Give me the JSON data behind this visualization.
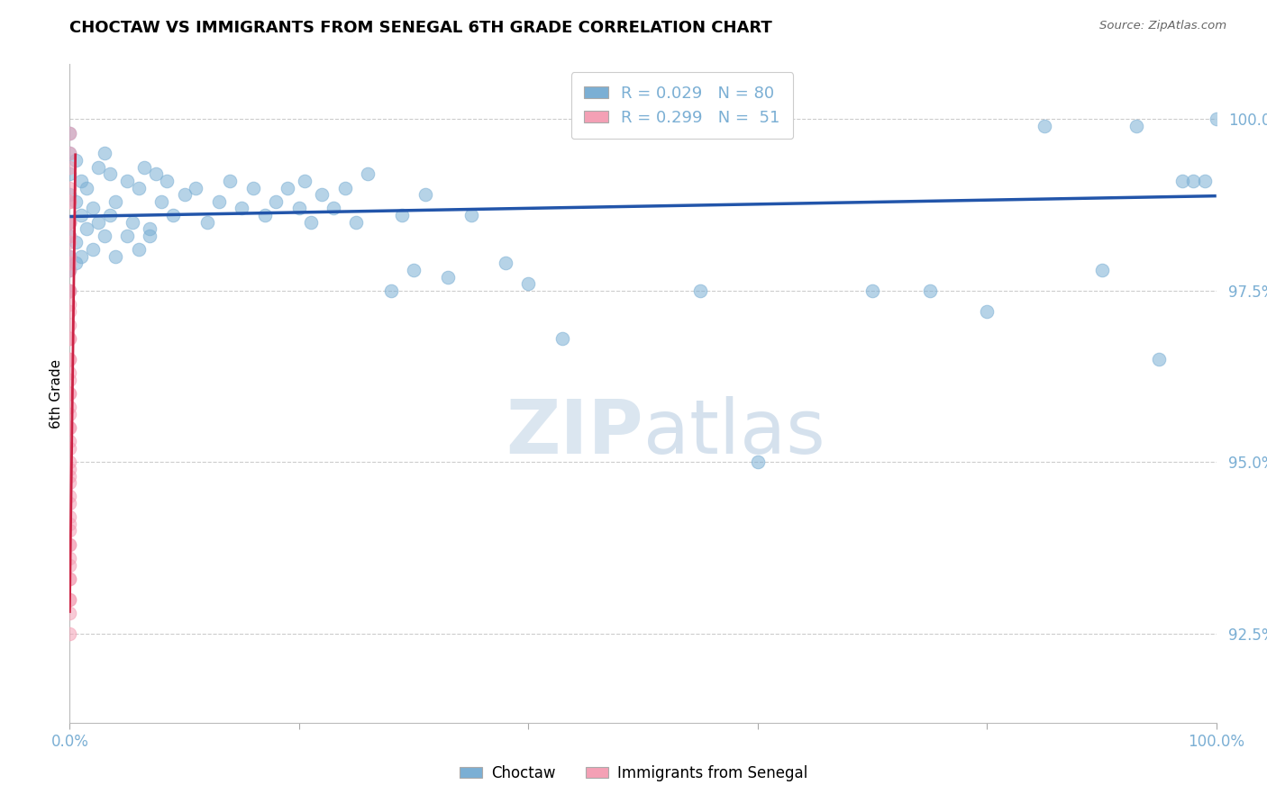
{
  "title": "CHOCTAW VS IMMIGRANTS FROM SENEGAL 6TH GRADE CORRELATION CHART",
  "source": "Source: ZipAtlas.com",
  "ylabel": "6th Grade",
  "blue_color": "#7BAFD4",
  "pink_color": "#F4A0B5",
  "blue_line_color": "#2255AA",
  "pink_line_color": "#CC2244",
  "blue_scatter_x": [
    0.0,
    0.0,
    0.0,
    0.0,
    0.0,
    0.5,
    0.5,
    1.0,
    1.0,
    1.5,
    2.0,
    2.5,
    3.0,
    3.5,
    4.0,
    5.0,
    5.5,
    6.0,
    6.5,
    7.0,
    7.5,
    8.0,
    8.5,
    9.0,
    10.0,
    11.0,
    12.0,
    13.0,
    14.0,
    15.0,
    16.0,
    17.0,
    18.0,
    19.0,
    20.0,
    20.5,
    21.0,
    22.0,
    23.0,
    24.0,
    25.0,
    26.0,
    28.0,
    29.0,
    30.0,
    31.0,
    33.0,
    35.0,
    38.0,
    40.0,
    43.0,
    55.0,
    60.0,
    70.0,
    75.0,
    80.0,
    85.0,
    90.0,
    93.0,
    95.0,
    97.0,
    98.0,
    99.0,
    100.0,
    0.0,
    0.0,
    0.0,
    0.0,
    0.5,
    0.5,
    1.0,
    1.5,
    2.0,
    2.5,
    3.0,
    3.5,
    4.0,
    5.0,
    6.0,
    7.0
  ],
  "blue_scatter_y": [
    99.8,
    99.5,
    99.2,
    98.9,
    98.5,
    99.4,
    98.8,
    99.1,
    98.6,
    99.0,
    98.7,
    99.3,
    99.5,
    99.2,
    98.8,
    99.1,
    98.5,
    99.0,
    99.3,
    98.3,
    99.2,
    98.8,
    99.1,
    98.6,
    98.9,
    99.0,
    98.5,
    98.8,
    99.1,
    98.7,
    99.0,
    98.6,
    98.8,
    99.0,
    98.7,
    99.1,
    98.5,
    98.9,
    98.7,
    99.0,
    98.5,
    99.2,
    97.5,
    98.6,
    97.8,
    98.9,
    97.7,
    98.6,
    97.9,
    97.6,
    96.8,
    97.5,
    95.0,
    97.5,
    97.5,
    97.2,
    99.9,
    97.8,
    99.9,
    96.5,
    99.1,
    99.1,
    99.1,
    100.0,
    98.3,
    98.0,
    97.8,
    97.5,
    98.2,
    97.9,
    98.0,
    98.4,
    98.1,
    98.5,
    98.3,
    98.6,
    98.0,
    98.3,
    98.1,
    98.4
  ],
  "pink_scatter_x": [
    0.0,
    0.0,
    0.0,
    0.0,
    0.0,
    0.0,
    0.0,
    0.0,
    0.0,
    0.0,
    0.0,
    0.0,
    0.0,
    0.0,
    0.0,
    0.0,
    0.0,
    0.0,
    0.0,
    0.0,
    0.0,
    0.0,
    0.0,
    0.0,
    0.0,
    0.0,
    0.0,
    0.0,
    0.0,
    0.0,
    0.0,
    0.0,
    0.0,
    0.0,
    0.0,
    0.0,
    0.0,
    0.0,
    0.0,
    0.0,
    0.0,
    0.0,
    0.0,
    0.0,
    0.0,
    0.0,
    0.0,
    0.0,
    0.0,
    0.0,
    0.0
  ],
  "pink_scatter_y": [
    99.8,
    99.5,
    99.3,
    99.0,
    98.8,
    98.5,
    98.3,
    98.0,
    97.8,
    97.5,
    97.3,
    97.0,
    96.8,
    96.5,
    96.2,
    96.0,
    95.8,
    95.5,
    95.3,
    95.0,
    94.8,
    94.5,
    94.2,
    94.0,
    93.8,
    93.5,
    93.3,
    93.0,
    92.8,
    92.5,
    98.8,
    98.5,
    98.2,
    97.9,
    97.5,
    97.2,
    96.8,
    96.5,
    96.3,
    96.0,
    95.7,
    95.5,
    95.2,
    94.9,
    94.7,
    94.4,
    94.1,
    93.8,
    93.6,
    93.3,
    93.0
  ],
  "blue_trend_x": [
    0.0,
    100.0
  ],
  "blue_trend_y": [
    98.58,
    98.88
  ],
  "pink_trend_x": [
    0.0,
    0.5
  ],
  "pink_trend_y": [
    92.8,
    99.5
  ],
  "xlim": [
    0.0,
    100.0
  ],
  "ylim": [
    91.2,
    100.8
  ],
  "yticks": [
    92.5,
    95.0,
    97.5,
    100.0
  ],
  "ytick_labels": [
    "92.5%",
    "95.0%",
    "97.5%",
    "100.0%"
  ],
  "xtick_positions": [
    0,
    20,
    40,
    60,
    80,
    100
  ],
  "xtick_labels": [
    "0.0%",
    "",
    "",
    "",
    "",
    "100.0%"
  ],
  "background_color": "#FFFFFF",
  "grid_color": "#CCCCCC",
  "watermark_zip": "ZIP",
  "watermark_atlas": "atlas"
}
